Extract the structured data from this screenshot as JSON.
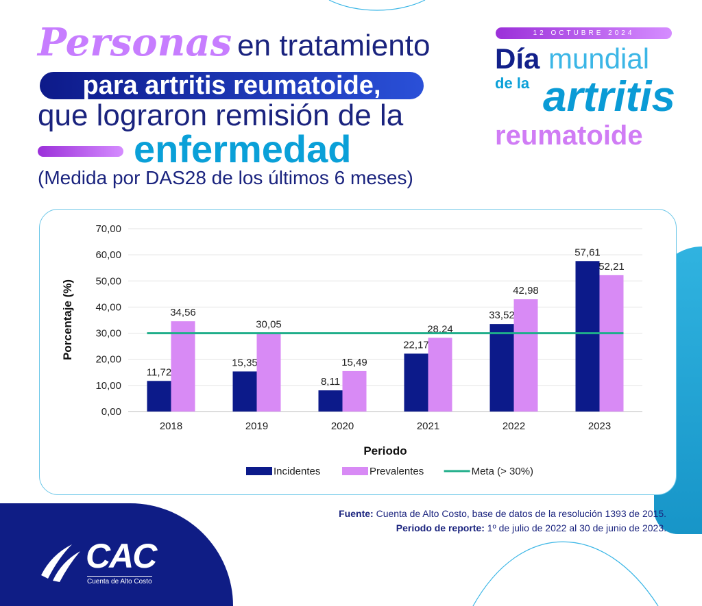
{
  "header": {
    "title_emph": "Personas",
    "title_rest": "en tratamiento",
    "title_line2": "para artritis reumatoide,",
    "title_line3": "que lograron remisión de la",
    "title_line4": "enfermedad",
    "subtitle": "(Medida por DAS28 de los últimos 6 meses)"
  },
  "event": {
    "date": "12 OCTUBRE 2024",
    "dia": "Día",
    "mundial": "mundial",
    "de_la": "de la",
    "artritis": "artritis",
    "reumatoide": "reumatoide"
  },
  "footer": {
    "source_label": "Fuente:",
    "source_text": "Cuenta de Alto Costo, base de datos de la resolución 1393 de 2015.",
    "period_label": "Periodo de reporte:",
    "period_text": "1º de julio de 2022 al 30 de junio de 2023.",
    "logo_text": "CAC",
    "logo_sub": "Cuenta de Alto Costo"
  },
  "colors": {
    "incidentes": "#0c1a8a",
    "prevalentes": "#d88af5",
    "meta": "#1fae8a"
  },
  "chart_data": {
    "type": "bar",
    "categories": [
      "2018",
      "2019",
      "2020",
      "2021",
      "2022",
      "2023"
    ],
    "series": [
      {
        "name": "Incidentes",
        "values": [
          11.72,
          15.35,
          8.11,
          22.17,
          33.52,
          57.61
        ],
        "labels": [
          "11,72",
          "15,35",
          "8,11",
          "22,17",
          "33,52",
          "57,61"
        ]
      },
      {
        "name": "Prevalentes",
        "values": [
          34.56,
          30.05,
          15.49,
          28.24,
          42.98,
          52.21
        ],
        "labels": [
          "34,56",
          "30,05",
          "15,49",
          "28,24",
          "42,98",
          "52,21"
        ]
      }
    ],
    "reference_line": {
      "name": "Meta (> 30%)",
      "value": 30
    },
    "xlabel": "Periodo",
    "ylabel": "Porcentaje (%)",
    "ylim": [
      0,
      70
    ],
    "yticks": [
      "0,00",
      "10,00",
      "20,00",
      "30,00",
      "40,00",
      "50,00",
      "60,00",
      "70,00"
    ],
    "grid": true,
    "legend": "bottom"
  }
}
